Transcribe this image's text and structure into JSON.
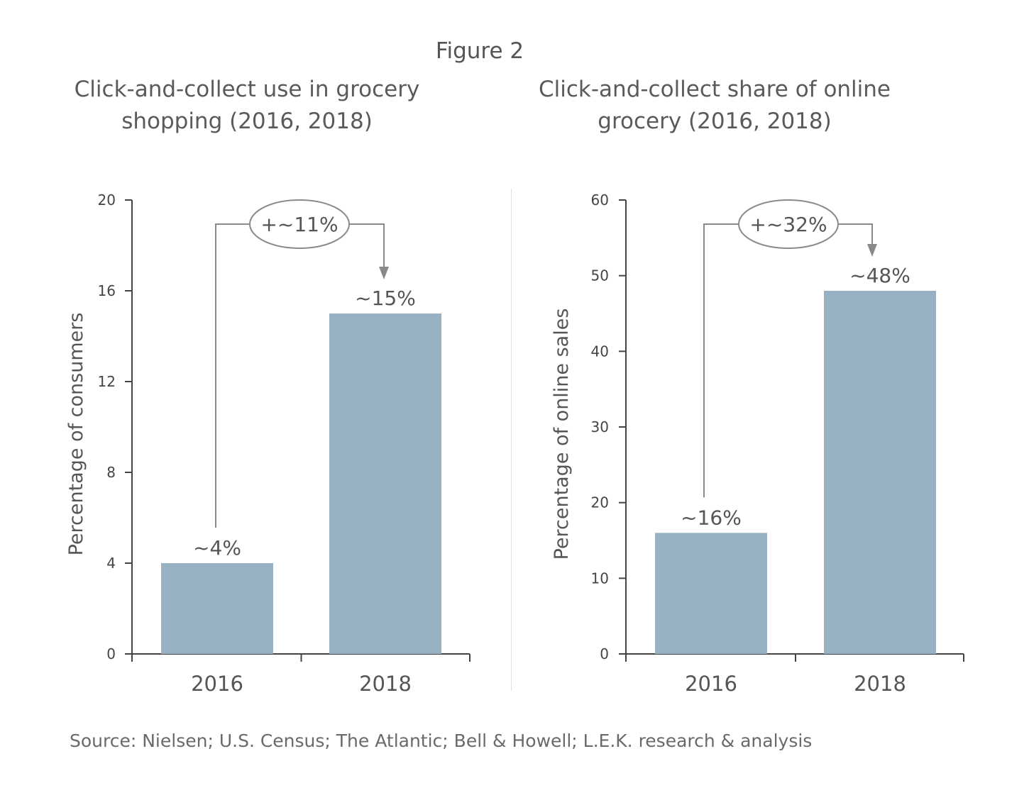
{
  "figure_label": "Figure 2",
  "source": "Source: Nielsen; U.S. Census; The Atlantic; Bell & Howell; L.E.K. research & analysis",
  "colors": {
    "bar": "#98b2c3",
    "axis": "#444444",
    "annotation": "#8a8a8a"
  },
  "chart_data": [
    {
      "type": "bar",
      "title_lines": [
        "Click-and-collect use in grocery",
        "shopping (2016, 2018)"
      ],
      "categories": [
        "2016",
        "2018"
      ],
      "values": [
        4,
        15
      ],
      "value_labels": [
        "~4%",
        "~15%"
      ],
      "ylabel": "Percentage of consumers",
      "ylim": [
        0,
        20
      ],
      "yticks": [
        0,
        4,
        8,
        12,
        16,
        20
      ],
      "annotation": "+~11%",
      "grid": false,
      "legend": "none"
    },
    {
      "type": "bar",
      "title_lines": [
        "Click-and-collect share of online",
        "grocery (2016, 2018)"
      ],
      "categories": [
        "2016",
        "2018"
      ],
      "values": [
        16,
        48
      ],
      "value_labels": [
        "~16%",
        "~48%"
      ],
      "ylabel": "Percentage of online sales",
      "ylim": [
        0,
        60
      ],
      "yticks": [
        0,
        10,
        20,
        30,
        40,
        50,
        60
      ],
      "annotation": "+~32%",
      "grid": false,
      "legend": "none"
    }
  ]
}
